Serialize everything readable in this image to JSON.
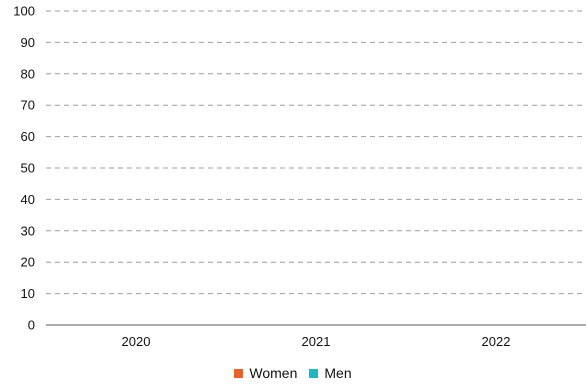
{
  "chart_data": {
    "type": "bar",
    "categories": [
      "2020",
      "2021",
      "2022"
    ],
    "series": [
      {
        "name": "Women",
        "color": "#e8632b",
        "values": [
          0,
          0,
          0
        ]
      },
      {
        "name": "Men",
        "color": "#1fb5c2",
        "values": [
          0,
          0,
          0
        ]
      }
    ],
    "yticks": [
      "0",
      "10",
      "20",
      "30",
      "40",
      "50",
      "60",
      "70",
      "80",
      "90",
      "100"
    ],
    "ylim": [
      0,
      100
    ],
    "grid": true,
    "legend_position": "bottom-center"
  }
}
